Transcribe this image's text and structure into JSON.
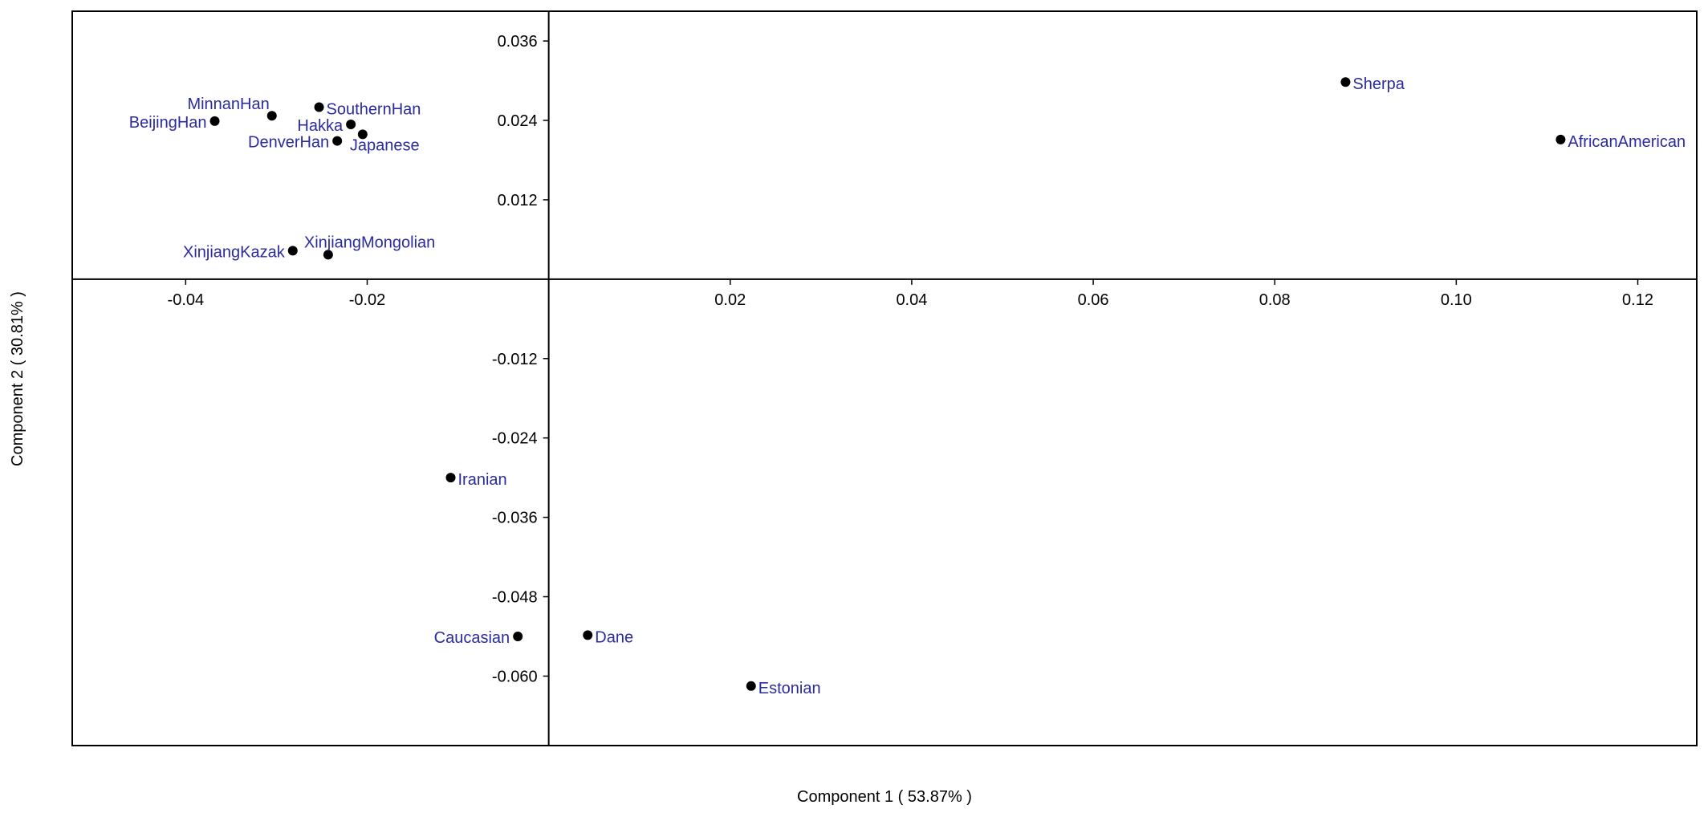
{
  "chart_data": {
    "type": "scatter",
    "title": "",
    "xlabel": "Component  1  ( 53.87% )",
    "ylabel": "Component  2  ( 30.81% )",
    "xlim": [
      -0.0525,
      0.1265
    ],
    "ylim": [
      -0.0705,
      0.0405
    ],
    "x_ticks": [
      -0.04,
      -0.02,
      0.02,
      0.04,
      0.06,
      0.08,
      0.1,
      0.12
    ],
    "x_tick_labels": [
      "-0.04",
      "-0.02",
      "0.02",
      "0.04",
      "0.06",
      "0.08",
      "0.10",
      "0.12"
    ],
    "y_ticks": [
      0.036,
      0.024,
      0.012,
      -0.012,
      -0.024,
      -0.036,
      -0.048,
      -0.06
    ],
    "y_tick_labels": [
      "0.036",
      "0.024",
      "0.012",
      "-0.012",
      "-0.024",
      "-0.036",
      "-0.048",
      "-0.060"
    ],
    "grid": false,
    "points": [
      {
        "label": "BeijingHan",
        "x": -0.0368,
        "y": 0.0239,
        "label_pos": "left"
      },
      {
        "label": "MinnanHan",
        "x": -0.0305,
        "y": 0.0247,
        "label_pos": "upper-left"
      },
      {
        "label": "SouthernHan",
        "x": -0.0253,
        "y": 0.026,
        "label_pos": "right"
      },
      {
        "label": "Hakka",
        "x": -0.0218,
        "y": 0.0234,
        "label_pos": "left"
      },
      {
        "label": "Japanese",
        "x": -0.0205,
        "y": 0.0219,
        "label_pos": "lower-left"
      },
      {
        "label": "DenverHan",
        "x": -0.0233,
        "y": 0.0209,
        "label_pos": "left"
      },
      {
        "label": "XinjiangKazak",
        "x": -0.0282,
        "y": 0.0043,
        "label_pos": "left"
      },
      {
        "label": "XinjiangMongolian",
        "x": -0.0243,
        "y": 0.0037,
        "label_pos": "upper-right"
      },
      {
        "label": "Sherpa",
        "x": 0.0878,
        "y": 0.0298,
        "label_pos": "right"
      },
      {
        "label": "AfricanAmerican",
        "x": 0.1115,
        "y": 0.0211,
        "label_pos": "right"
      },
      {
        "label": "Iranian",
        "x": -0.0108,
        "y": -0.03,
        "label_pos": "right"
      },
      {
        "label": "Caucasian",
        "x": -0.0034,
        "y": -0.054,
        "label_pos": "left"
      },
      {
        "label": "Dane",
        "x": 0.0043,
        "y": -0.0538,
        "label_pos": "right"
      },
      {
        "label": "Estonian",
        "x": 0.0223,
        "y": -0.0615,
        "label_pos": "right"
      }
    ],
    "colors": {
      "marker": "#000000",
      "label": "#2b2ba0",
      "axes": "#000000"
    }
  }
}
